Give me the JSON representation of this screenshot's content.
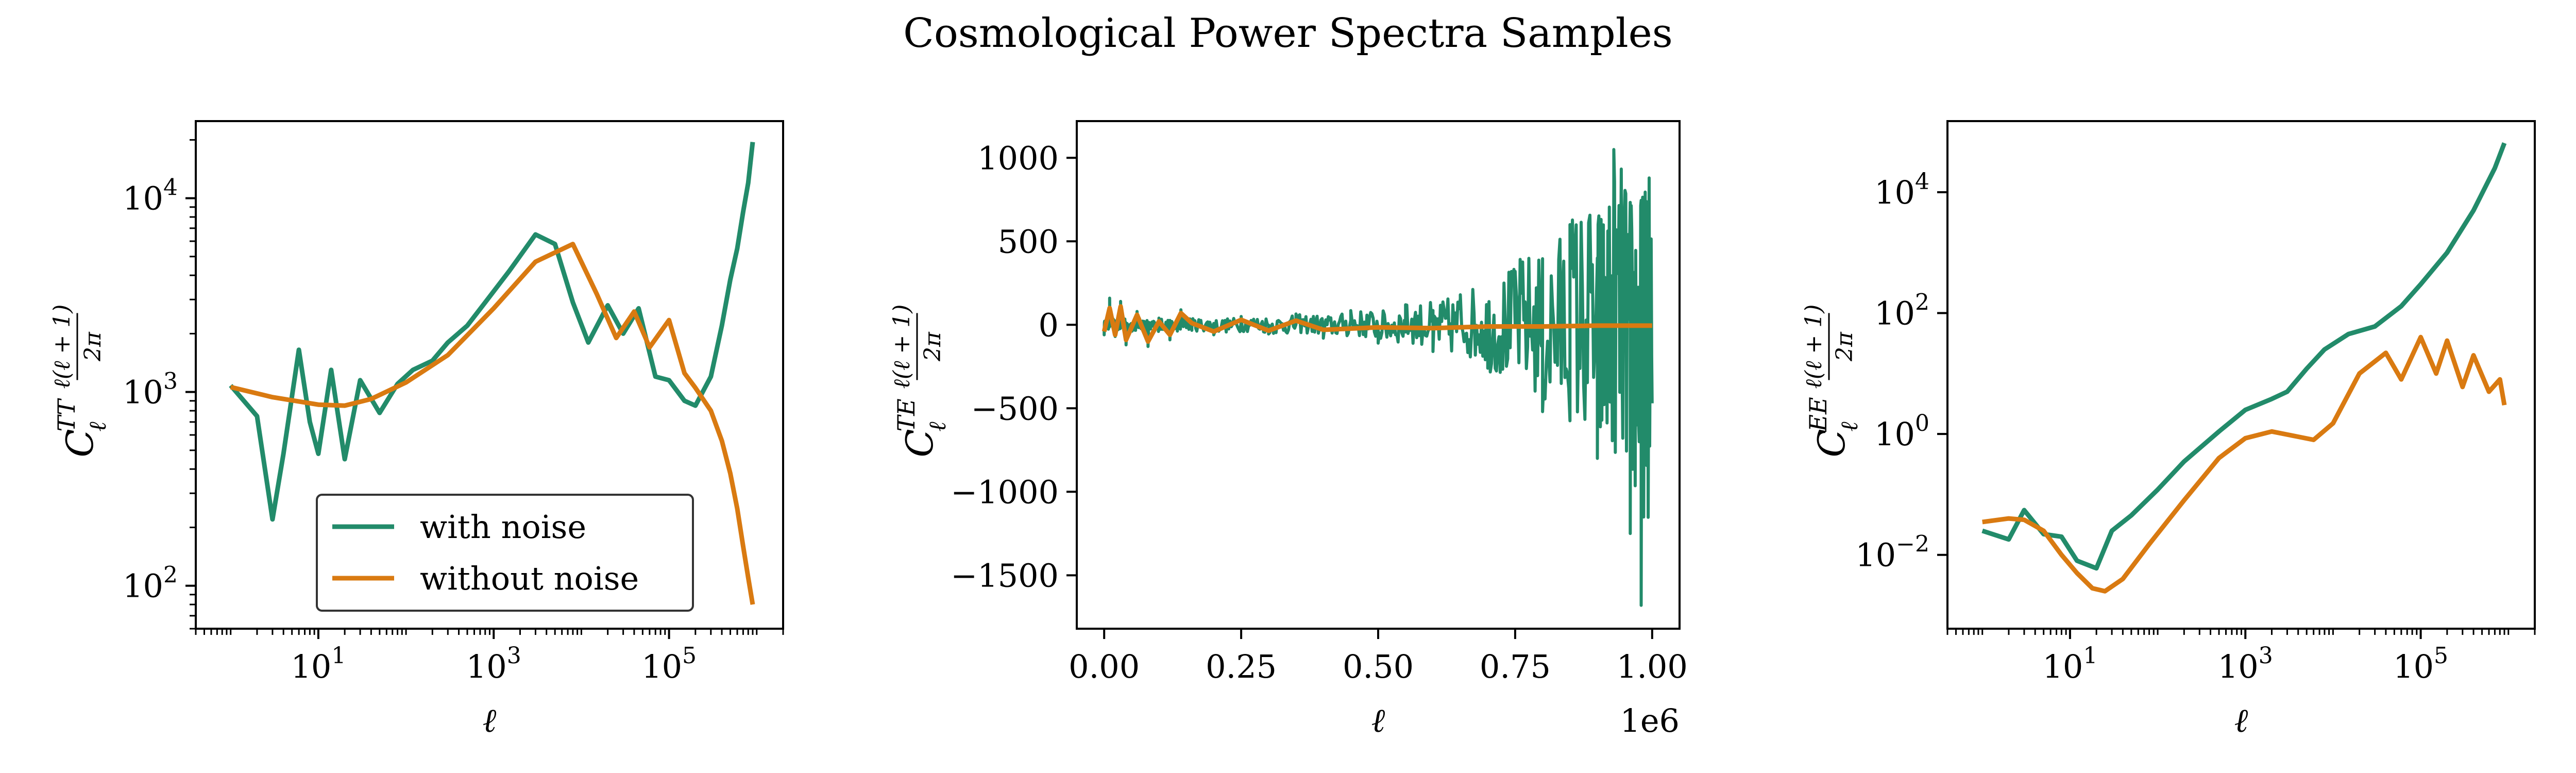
{
  "figure": {
    "suptitle": "Cosmological Power Spectra Samples"
  },
  "chart_data": [
    {
      "type": "line",
      "spectrum": "TT",
      "xscale": "log",
      "yscale": "log",
      "xlabel": "ℓ",
      "ylabel_main": "C",
      "ylabel_sub": "ℓ",
      "ylabel_sup": "TT",
      "ylabel_frac_num": "ℓ(ℓ + 1)",
      "ylabel_frac_den": "2π",
      "xlim": [
        0.4,
        2000000
      ],
      "ylim": [
        60,
        25000
      ],
      "xticks": [
        {
          "v": 10,
          "base": "10",
          "exp": "1"
        },
        {
          "v": 1000,
          "base": "10",
          "exp": "3"
        },
        {
          "v": 100000,
          "base": "10",
          "exp": "5"
        }
      ],
      "yticks": [
        {
          "v": 100,
          "base": "10",
          "exp": "2"
        },
        {
          "v": 1000,
          "base": "10",
          "exp": "3"
        },
        {
          "v": 10000,
          "base": "10",
          "exp": "4"
        }
      ],
      "legend": {
        "position": "lower center",
        "entries": [
          "with noise",
          "without noise"
        ]
      },
      "series": [
        {
          "name": "with noise",
          "color": "#228b6a",
          "x": [
            1,
            2,
            3,
            4,
            6,
            8,
            10,
            14,
            20,
            30,
            50,
            80,
            120,
            200,
            300,
            500,
            800,
            1500,
            3000,
            5000,
            8000,
            12000,
            20000,
            30000,
            45000,
            70000,
            100000,
            150000,
            200000,
            300000,
            400000,
            500000,
            600000,
            700000,
            800000,
            900000
          ],
          "y": [
            1080,
            750,
            220,
            480,
            1650,
            700,
            480,
            1300,
            450,
            1150,
            780,
            1100,
            1300,
            1450,
            1800,
            2200,
            2900,
            4200,
            6500,
            5800,
            2900,
            1800,
            2800,
            2000,
            2700,
            1200,
            1150,
            900,
            850,
            1200,
            2200,
            3800,
            5500,
            8500,
            12000,
            19500
          ]
        },
        {
          "name": "without noise",
          "color": "#d97a11",
          "x": [
            1,
            3,
            10,
            20,
            40,
            100,
            300,
            1000,
            3000,
            8000,
            15000,
            25000,
            40000,
            60000,
            100000,
            150000,
            200000,
            300000,
            400000,
            500000,
            600000,
            700000,
            800000,
            900000
          ],
          "y": [
            1060,
            940,
            860,
            850,
            920,
            1120,
            1550,
            2700,
            4700,
            5800,
            3200,
            1900,
            2600,
            1700,
            2350,
            1250,
            1050,
            800,
            560,
            380,
            250,
            160,
            110,
            80
          ]
        }
      ]
    },
    {
      "type": "line",
      "spectrum": "TE",
      "xscale": "linear",
      "yscale": "linear",
      "xlabel": "ℓ",
      "offset_text": "1e6",
      "ylabel_main": "C",
      "ylabel_sub": "ℓ",
      "ylabel_sup": "TE",
      "ylabel_frac_num": "ℓ(ℓ + 1)",
      "ylabel_frac_den": "2π",
      "xlim": [
        -0.05,
        1.05
      ],
      "ylim": [
        -1820,
        1220
      ],
      "xticks": [
        {
          "v": 0,
          "label": "0.00"
        },
        {
          "v": 0.25,
          "label": "0.25"
        },
        {
          "v": 0.5,
          "label": "0.50"
        },
        {
          "v": 0.75,
          "label": "0.75"
        },
        {
          "v": 1.0,
          "label": "1.00"
        }
      ],
      "yticks": [
        {
          "v": -1500,
          "label": "−1500"
        },
        {
          "v": -1000,
          "label": "−1000"
        },
        {
          "v": -500,
          "label": "−500"
        },
        {
          "v": 0,
          "label": "0"
        },
        {
          "v": 500,
          "label": "500"
        },
        {
          "v": 1000,
          "label": "1000"
        }
      ],
      "series": [
        {
          "name": "with noise",
          "color": "#228b6a",
          "x": [
            0,
            0.01,
            0.02,
            0.03,
            0.04,
            0.06,
            0.08,
            0.1,
            0.12,
            0.14,
            0.16,
            0.2,
            0.25,
            0.3,
            0.35,
            0.4,
            0.45,
            0.5,
            0.55,
            0.6,
            0.65,
            0.7,
            0.75,
            0.8,
            0.85,
            0.9,
            0.93,
            0.96,
            0.98,
            1.0
          ],
          "y": [
            -60,
            160,
            -70,
            140,
            -120,
            80,
            -130,
            40,
            -90,
            90,
            10,
            -60,
            50,
            -55,
            65,
            -80,
            85,
            -110,
            120,
            -160,
            180,
            -260,
            320,
            -520,
            600,
            -800,
            1050,
            -1250,
            -1680,
            -470
          ],
          "noisy": true,
          "noise_env": [
            [
              0,
              30
            ],
            [
              0.2,
              40
            ],
            [
              0.4,
              60
            ],
            [
              0.5,
              90
            ],
            [
              0.6,
              140
            ],
            [
              0.7,
              250
            ],
            [
              0.8,
              480
            ],
            [
              0.9,
              800
            ],
            [
              1.0,
              1050
            ]
          ]
        },
        {
          "name": "without noise",
          "color": "#d97a11",
          "x": [
            0,
            0.01,
            0.02,
            0.03,
            0.04,
            0.06,
            0.08,
            0.1,
            0.12,
            0.14,
            0.16,
            0.2,
            0.25,
            0.3,
            0.35,
            0.4,
            0.5,
            0.6,
            0.7,
            0.8,
            0.9,
            1.0
          ],
          "y": [
            -40,
            100,
            -60,
            110,
            -90,
            60,
            -100,
            20,
            -60,
            70,
            10,
            -40,
            30,
            -35,
            25,
            -30,
            -15,
            -20,
            -10,
            -10,
            -5,
            -5
          ]
        }
      ]
    },
    {
      "type": "line",
      "spectrum": "EE",
      "xscale": "log",
      "yscale": "log",
      "xlabel": "ℓ",
      "ylabel_main": "C",
      "ylabel_sub": "ℓ",
      "ylabel_sup": "EE",
      "ylabel_frac_num": "ℓ(ℓ + 1)",
      "ylabel_frac_den": "2π",
      "xlim": [
        0.4,
        2000000
      ],
      "ylim": [
        0.0006,
        150000
      ],
      "xticks": [
        {
          "v": 10,
          "base": "10",
          "exp": "1"
        },
        {
          "v": 1000,
          "base": "10",
          "exp": "3"
        },
        {
          "v": 100000,
          "base": "10",
          "exp": "5"
        }
      ],
      "yticks": [
        {
          "v": 0.01,
          "base": "10",
          "exp": "−2"
        },
        {
          "v": 1,
          "base": "10",
          "exp": "0"
        },
        {
          "v": 100,
          "base": "10",
          "exp": "2"
        },
        {
          "v": 10000,
          "base": "10",
          "exp": "4"
        }
      ],
      "series": [
        {
          "name": "with noise",
          "color": "#228b6a",
          "x": [
            1,
            2,
            3,
            5,
            8,
            12,
            20,
            30,
            50,
            100,
            200,
            500,
            1000,
            2000,
            3000,
            5000,
            8000,
            15000,
            30000,
            60000,
            100000,
            200000,
            400000,
            700000,
            900000
          ],
          "y": [
            0.025,
            0.018,
            0.055,
            0.022,
            0.02,
            0.008,
            0.006,
            0.025,
            0.045,
            0.12,
            0.35,
            1.1,
            2.5,
            3.8,
            5,
            12,
            25,
            45,
            60,
            130,
            300,
            1000,
            5000,
            25000,
            65000
          ]
        },
        {
          "name": "without noise",
          "color": "#d97a11",
          "x": [
            1,
            2,
            3,
            5,
            8,
            12,
            18,
            25,
            40,
            80,
            200,
            500,
            1000,
            2000,
            4000,
            6000,
            10000,
            20000,
            40000,
            60000,
            100000,
            150000,
            200000,
            300000,
            400000,
            600000,
            800000,
            900000
          ],
          "y": [
            0.035,
            0.04,
            0.038,
            0.025,
            0.01,
            0.005,
            0.0028,
            0.0025,
            0.004,
            0.015,
            0.08,
            0.4,
            0.85,
            1.1,
            0.9,
            0.8,
            1.5,
            10,
            22,
            8,
            40,
            10,
            35,
            6,
            20,
            5,
            8,
            3
          ]
        }
      ]
    }
  ]
}
